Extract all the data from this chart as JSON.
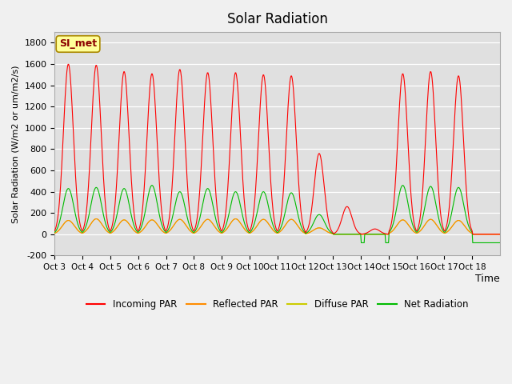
{
  "title": "Solar Radiation",
  "xlabel": "Time",
  "ylabel": "Solar Radiation (W/m2 or um/m2/s)",
  "ylim": [
    -200,
    1900
  ],
  "yticks": [
    -200,
    0,
    200,
    400,
    600,
    800,
    1000,
    1200,
    1400,
    1600,
    1800
  ],
  "x_labels": [
    "Oct 3",
    "Oct 4",
    "Oct 5",
    "Oct 6",
    "Oct 7",
    "Oct 8",
    "Oct 9",
    "Oct 10",
    "Oct 11",
    "Oct 12",
    "Oct 13",
    "Oct 14",
    "Oct 15",
    "Oct 16",
    "Oct 17",
    "Oct 18"
  ],
  "bg_color": "#e0e0e0",
  "grid_color": "#ffffff",
  "station_label": "SI_met",
  "legend_entries": [
    "Incoming PAR",
    "Reflected PAR",
    "Diffuse PAR",
    "Net Radiation"
  ],
  "legend_colors": [
    "#ff0000",
    "#ff8c00",
    "#cccc00",
    "#00bb00"
  ],
  "line_colors": {
    "incoming": "#ff0000",
    "reflected": "#ff8c00",
    "diffuse": "#cccc00",
    "net": "#00bb00"
  },
  "n_days": 16,
  "day_peaks_incoming": [
    1600,
    1590,
    1530,
    1510,
    1550,
    1520,
    1520,
    1500,
    1490,
    760,
    260,
    50,
    1510,
    1530,
    1490,
    0
  ],
  "day_peaks_net": [
    430,
    440,
    430,
    460,
    400,
    430,
    400,
    400,
    390,
    185,
    0,
    0,
    460,
    450,
    440,
    0
  ],
  "day_peaks_reflected": [
    130,
    145,
    135,
    135,
    140,
    140,
    145,
    140,
    140,
    60,
    0,
    0,
    135,
    140,
    130,
    0
  ],
  "day_peaks_diffuse": [
    130,
    145,
    135,
    135,
    140,
    140,
    145,
    140,
    140,
    60,
    0,
    0,
    135,
    140,
    130,
    0
  ],
  "night_net": -80
}
